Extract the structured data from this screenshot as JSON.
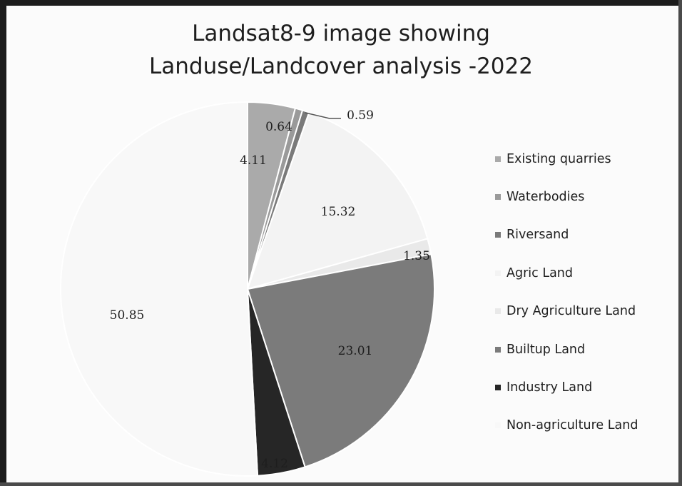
{
  "chart_data": {
    "type": "pie",
    "title_lines": [
      "Landsat8-9 image showing",
      "Landuse/Landcover analysis -2022"
    ],
    "start_angle_deg": 0,
    "slices": [
      {
        "name": "Existing quarries",
        "value": 4.11,
        "label": "4.11",
        "color": "#aaaaaa",
        "label_placement": "inside"
      },
      {
        "name": "Waterbodies",
        "value": 0.64,
        "label": "0.64",
        "color": "#9a9a9a",
        "label_placement": "outside"
      },
      {
        "name": "Riversand",
        "value": 0.59,
        "label": "0.59",
        "color": "#7a7a7a",
        "label_placement": "outside-leader"
      },
      {
        "name": "Agric Land",
        "value": 15.32,
        "label": "15.32",
        "color": "#f3f3f3",
        "label_placement": "inside"
      },
      {
        "name": "Dry Agriculture Land",
        "value": 1.35,
        "label": "1.35",
        "color": "#e9e9e9",
        "label_placement": "outside"
      },
      {
        "name": "Builtup Land",
        "value": 23.01,
        "label": "23.01",
        "color": "#7b7b7b",
        "label_placement": "inside"
      },
      {
        "name": "Industry Land",
        "value": 4.12,
        "label": "4.12",
        "color": "#262626",
        "label_placement": "outside"
      },
      {
        "name": "Non-agriculture Land",
        "value": 50.85,
        "label": "50.85",
        "color": "#f8f8f8",
        "label_placement": "inside"
      }
    ],
    "legend_position": "right"
  }
}
